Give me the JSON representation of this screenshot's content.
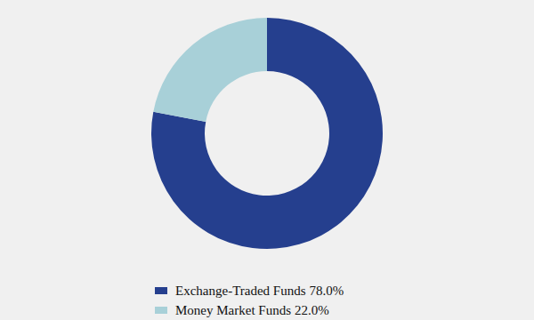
{
  "chart_data": {
    "type": "donut",
    "categories": [
      "Exchange-Traded Funds",
      "Money Market Funds"
    ],
    "values": [
      78.0,
      22.0
    ],
    "value_labels": [
      "78.0%",
      "22.0%"
    ],
    "colors": [
      "#253f8e",
      "#a8d0d8"
    ],
    "legend": "bottom"
  }
}
